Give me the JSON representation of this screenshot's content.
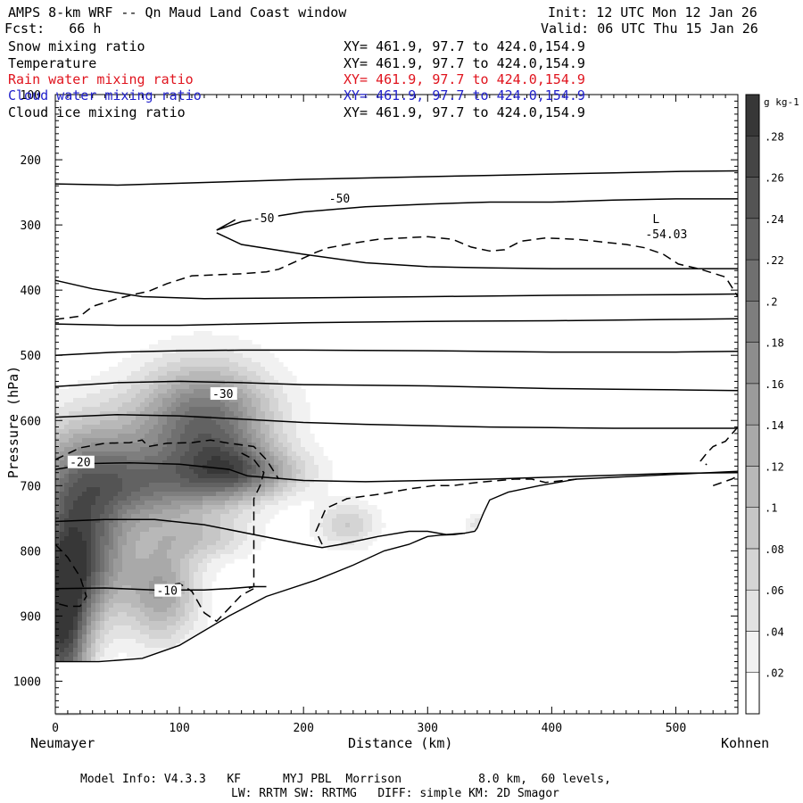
{
  "header": {
    "title": "AMPS 8-km WRF -- Qn Maud Land Coast window",
    "init": "Init: 12 UTC Mon 12 Jan 26",
    "fcst": "Fcst:   66 h",
    "valid": "Valid: 06 UTC Thu 15 Jan 26"
  },
  "fields": [
    {
      "name": "Snow mixing ratio",
      "xy": "XY= 461.9, 97.7 to 424.0,154.9",
      "color": "#000000"
    },
    {
      "name": "Temperature",
      "xy": "XY= 461.9, 97.7 to 424.0,154.9",
      "color": "#000000"
    },
    {
      "name": "Rain water mixing ratio",
      "xy": "XY= 461.9, 97.7 to 424.0,154.9",
      "color": "#e0141e"
    },
    {
      "name": "Cloud water mixing ratio",
      "xy": "XY= 461.9, 97.7 to 424.0,154.9",
      "color": "#2222cc"
    },
    {
      "name": "Cloud ice mixing ratio",
      "xy": "XY= 461.9, 97.7 to 424.0,154.9",
      "color": "#000000"
    }
  ],
  "footer": {
    "line1": "Model Info: V4.3.3   KF      MYJ PBL  Morrison           8.0 km,  60 levels,",
    "line2": "LW: RRTM SW: RRTMG   DIFF: simple KM: 2D Smagor"
  },
  "chart_data": {
    "type": "cross-section",
    "xlabel": "Distance (km)",
    "ylabel": "Pressure (hPa)",
    "x_left_label": "Neumayer",
    "x_right_label": "Kohnen",
    "xlim": [
      0,
      550
    ],
    "ylim": [
      1050,
      100
    ],
    "xticks": [
      0,
      100,
      200,
      300,
      400,
      500
    ],
    "yticks": [
      100,
      200,
      300,
      400,
      500,
      600,
      700,
      800,
      900,
      1000
    ],
    "colorbar": {
      "unit": "g kg-1",
      "ticks": [
        ".02",
        ".04",
        ".06",
        ".08",
        ".1",
        ".12",
        ".14",
        ".16",
        ".18",
        ".2",
        ".22",
        ".24",
        ".26",
        ".28"
      ],
      "range": [
        0,
        0.3
      ],
      "levels": 15
    },
    "snow_blobs": [
      {
        "x": 5,
        "p": 900,
        "rx": 22,
        "rp": 150,
        "v": 0.29
      },
      {
        "x": 28,
        "p": 690,
        "rx": 45,
        "rp": 95,
        "v": 0.18
      },
      {
        "x": 30,
        "p": 820,
        "rx": 28,
        "rp": 90,
        "v": 0.16
      },
      {
        "x": 85,
        "p": 700,
        "rx": 50,
        "rp": 55,
        "v": 0.12
      },
      {
        "x": 120,
        "p": 605,
        "rx": 55,
        "rp": 90,
        "v": 0.22
      },
      {
        "x": 140,
        "p": 680,
        "rx": 35,
        "rp": 45,
        "v": 0.12
      },
      {
        "x": 85,
        "p": 860,
        "rx": 30,
        "rp": 80,
        "v": 0.14
      },
      {
        "x": 120,
        "p": 780,
        "rx": 40,
        "rp": 35,
        "v": 0.07
      },
      {
        "x": 175,
        "p": 680,
        "rx": 40,
        "rp": 35,
        "v": 0.07
      },
      {
        "x": 235,
        "p": 760,
        "rx": 25,
        "rp": 35,
        "v": 0.08
      },
      {
        "x": 340,
        "p": 760,
        "rx": 10,
        "rp": 20,
        "v": 0.05
      }
    ],
    "terrain": [
      [
        0,
        970
      ],
      [
        35,
        970
      ],
      [
        70,
        965
      ],
      [
        100,
        945
      ],
      [
        140,
        900
      ],
      [
        170,
        870
      ],
      [
        210,
        845
      ],
      [
        240,
        822
      ],
      [
        265,
        800
      ],
      [
        285,
        790
      ],
      [
        295,
        782
      ],
      [
        300,
        778
      ],
      [
        310,
        776
      ],
      [
        322,
        775
      ],
      [
        330,
        773
      ],
      [
        338,
        770
      ],
      [
        340,
        765
      ],
      [
        345,
        742
      ],
      [
        350,
        722
      ],
      [
        365,
        710
      ],
      [
        390,
        700
      ],
      [
        420,
        690
      ],
      [
        550,
        678
      ]
    ],
    "isotherms": [
      {
        "label": "-50",
        "label_at": [
          229,
          260
        ],
        "points": [
          [
            130,
            308
          ],
          [
            150,
            295
          ],
          [
            200,
            280
          ],
          [
            250,
            272
          ],
          [
            300,
            268
          ],
          [
            350,
            265
          ],
          [
            400,
            265
          ],
          [
            450,
            262
          ],
          [
            500,
            260
          ],
          [
            550,
            260
          ]
        ]
      },
      {
        "label": "-50",
        "label_at": [
          168,
          290
        ],
        "points": [
          [
            130,
            308
          ],
          [
            145,
            292
          ]
        ]
      },
      {
        "label": "-50",
        "label_at": [
          168,
          290
        ],
        "points": [
          [
            130,
            312
          ],
          [
            150,
            330
          ],
          [
            200,
            345
          ],
          [
            250,
            358
          ],
          [
            300,
            364
          ],
          [
            350,
            366
          ],
          [
            400,
            367
          ],
          [
            450,
            367
          ],
          [
            500,
            367
          ],
          [
            550,
            367
          ]
        ]
      },
      {
        "label": "",
        "label_at": null,
        "points": [
          [
            0,
            237
          ],
          [
            50,
            239
          ],
          [
            100,
            236
          ],
          [
            150,
            233
          ],
          [
            200,
            230
          ],
          [
            250,
            228
          ],
          [
            300,
            226
          ],
          [
            350,
            224
          ],
          [
            400,
            222
          ],
          [
            450,
            220
          ],
          [
            500,
            218
          ],
          [
            550,
            217
          ]
        ]
      },
      {
        "label": "",
        "label_at": null,
        "points": [
          [
            0,
            385
          ],
          [
            30,
            398
          ],
          [
            70,
            410
          ],
          [
            120,
            413
          ],
          [
            200,
            412
          ],
          [
            300,
            410
          ],
          [
            400,
            408
          ],
          [
            500,
            407
          ],
          [
            550,
            406
          ]
        ]
      },
      {
        "label": "",
        "label_at": null,
        "points": [
          [
            0,
            452
          ],
          [
            50,
            454
          ],
          [
            100,
            454
          ],
          [
            150,
            452
          ],
          [
            200,
            450
          ],
          [
            300,
            448
          ],
          [
            400,
            447
          ],
          [
            500,
            445
          ],
          [
            550,
            444
          ]
        ]
      },
      {
        "label": "",
        "label_at": null,
        "points": [
          [
            0,
            500
          ],
          [
            50,
            495
          ],
          [
            100,
            493
          ],
          [
            150,
            492
          ],
          [
            200,
            492
          ],
          [
            300,
            493
          ],
          [
            400,
            495
          ],
          [
            500,
            495
          ],
          [
            550,
            494
          ]
        ]
      },
      {
        "label": "-30",
        "label_at": [
          135,
          560
        ],
        "points": [
          [
            0,
            548
          ],
          [
            50,
            542
          ],
          [
            100,
            540
          ],
          [
            150,
            542
          ],
          [
            200,
            545
          ],
          [
            250,
            546
          ],
          [
            300,
            547
          ],
          [
            350,
            549
          ],
          [
            400,
            551
          ],
          [
            450,
            552
          ],
          [
            500,
            553
          ],
          [
            550,
            554
          ]
        ]
      },
      {
        "label": "",
        "label_at": null,
        "points": [
          [
            0,
            595
          ],
          [
            50,
            591
          ],
          [
            100,
            593
          ],
          [
            150,
            598
          ],
          [
            200,
            603
          ],
          [
            250,
            606
          ],
          [
            300,
            608
          ],
          [
            350,
            610
          ],
          [
            400,
            611
          ],
          [
            450,
            612
          ],
          [
            500,
            612
          ],
          [
            550,
            612
          ]
        ]
      },
      {
        "label": "-20",
        "label_at": [
          20,
          665
        ],
        "points": [
          [
            0,
            675
          ],
          [
            30,
            666
          ],
          [
            60,
            665
          ],
          [
            100,
            667
          ],
          [
            140,
            675
          ],
          [
            155,
            685
          ],
          [
            200,
            692
          ],
          [
            250,
            694
          ],
          [
            300,
            692
          ],
          [
            350,
            690
          ],
          [
            400,
            687
          ],
          [
            450,
            684
          ],
          [
            500,
            681
          ],
          [
            550,
            680
          ]
        ]
      },
      {
        "label": "",
        "label_at": null,
        "points": [
          [
            0,
            755
          ],
          [
            40,
            752
          ],
          [
            80,
            752
          ],
          [
            120,
            760
          ],
          [
            160,
            775
          ],
          [
            200,
            790
          ],
          [
            215,
            795
          ],
          [
            230,
            790
          ],
          [
            260,
            778
          ],
          [
            285,
            770
          ],
          [
            300,
            770
          ],
          [
            315,
            775
          ],
          [
            330,
            773
          ]
        ]
      },
      {
        "label": "-10",
        "label_at": [
          90,
          862
        ],
        "points": [
          [
            0,
            858
          ],
          [
            40,
            857
          ],
          [
            80,
            860
          ],
          [
            120,
            860
          ],
          [
            140,
            858
          ],
          [
            160,
            855
          ],
          [
            170,
            855
          ]
        ]
      }
    ],
    "dashed_contours": [
      [
        [
          0,
          445
        ],
        [
          20,
          440
        ],
        [
          30,
          425
        ],
        [
          50,
          413
        ],
        [
          65,
          406
        ],
        [
          75,
          402
        ],
        [
          90,
          390
        ],
        [
          110,
          378
        ],
        [
          150,
          375
        ],
        [
          170,
          372
        ],
        [
          180,
          368
        ],
        [
          195,
          355
        ],
        [
          210,
          342
        ],
        [
          220,
          335
        ],
        [
          240,
          328
        ],
        [
          260,
          322
        ],
        [
          280,
          320
        ],
        [
          300,
          318
        ],
        [
          320,
          322
        ],
        [
          335,
          334
        ],
        [
          350,
          340
        ],
        [
          362,
          338
        ],
        [
          375,
          325
        ],
        [
          395,
          320
        ],
        [
          420,
          322
        ],
        [
          440,
          326
        ],
        [
          460,
          330
        ],
        [
          475,
          335
        ],
        [
          490,
          345
        ],
        [
          502,
          360
        ],
        [
          520,
          368
        ],
        [
          540,
          380
        ],
        [
          550,
          410
        ]
      ],
      [
        [
          150,
          650
        ],
        [
          160,
          660
        ],
        [
          168,
          680
        ],
        [
          165,
          700
        ],
        [
          160,
          720
        ],
        [
          160,
          780
        ],
        [
          160,
          855
        ],
        [
          155,
          858
        ]
      ],
      [
        [
          0,
          660
        ],
        [
          20,
          642
        ],
        [
          40,
          635
        ],
        [
          60,
          634
        ],
        [
          70,
          630
        ],
        [
          75,
          640
        ],
        [
          90,
          635
        ],
        [
          110,
          634
        ],
        [
          125,
          630
        ],
        [
          140,
          635
        ],
        [
          160,
          640
        ],
        [
          170,
          660
        ],
        [
          180,
          690
        ]
      ],
      [
        [
          0,
          790
        ],
        [
          10,
          810
        ],
        [
          20,
          840
        ],
        [
          25,
          870
        ],
        [
          20,
          885
        ],
        [
          10,
          885
        ],
        [
          0,
          880
        ]
      ],
      [
        [
          85,
          855
        ],
        [
          100,
          850
        ],
        [
          110,
          862
        ],
        [
          120,
          895
        ],
        [
          130,
          908
        ],
        [
          140,
          888
        ],
        [
          150,
          868
        ],
        [
          160,
          858
        ]
      ],
      [
        [
          215,
          790
        ],
        [
          210,
          770
        ],
        [
          218,
          735
        ],
        [
          235,
          720
        ],
        [
          265,
          712
        ],
        [
          285,
          705
        ],
        [
          305,
          700
        ],
        [
          320,
          700
        ],
        [
          340,
          695
        ],
        [
          370,
          690
        ],
        [
          384,
          690
        ],
        [
          395,
          695
        ],
        [
          420,
          690
        ]
      ],
      [
        [
          550,
          610
        ],
        [
          540,
          632
        ],
        [
          530,
          640
        ],
        [
          525,
          650
        ],
        [
          520,
          662
        ],
        [
          525,
          668
        ]
      ],
      [
        [
          530,
          700
        ],
        [
          545,
          690
        ],
        [
          550,
          685
        ]
      ]
    ],
    "L_label": {
      "text": "L",
      "value": "-54.03",
      "x": 487,
      "p": 300
    }
  }
}
